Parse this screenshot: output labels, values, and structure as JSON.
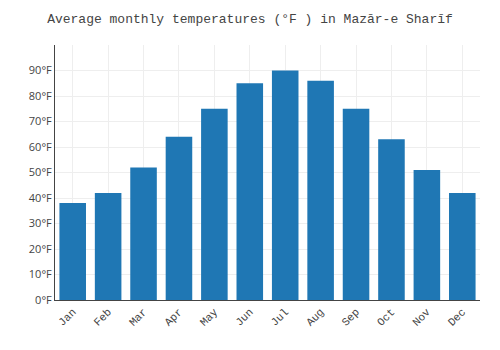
{
  "chart_data": {
    "type": "bar",
    "title": "Average monthly temperatures (°F ) in Mazār-e Sharīf",
    "categories": [
      "Jan",
      "Feb",
      "Mar",
      "Apr",
      "May",
      "Jun",
      "Jul",
      "Aug",
      "Sep",
      "Oct",
      "Nov",
      "Dec"
    ],
    "values": [
      38,
      42,
      52,
      64,
      75,
      85,
      90,
      86,
      75,
      63,
      51,
      42
    ],
    "ylim": [
      0,
      100
    ],
    "yticks": [
      {
        "value": 0,
        "label": "0°F"
      },
      {
        "value": 10,
        "label": "10°F"
      },
      {
        "value": 20,
        "label": "20°F"
      },
      {
        "value": 30,
        "label": "30°F"
      },
      {
        "value": 40,
        "label": "40°F"
      },
      {
        "value": 50,
        "label": "50°F"
      },
      {
        "value": 60,
        "label": "60°F"
      },
      {
        "value": 70,
        "label": "70°F"
      },
      {
        "value": 80,
        "label": "80°F"
      },
      {
        "value": 90,
        "label": "90°F"
      }
    ],
    "grid": true
  }
}
